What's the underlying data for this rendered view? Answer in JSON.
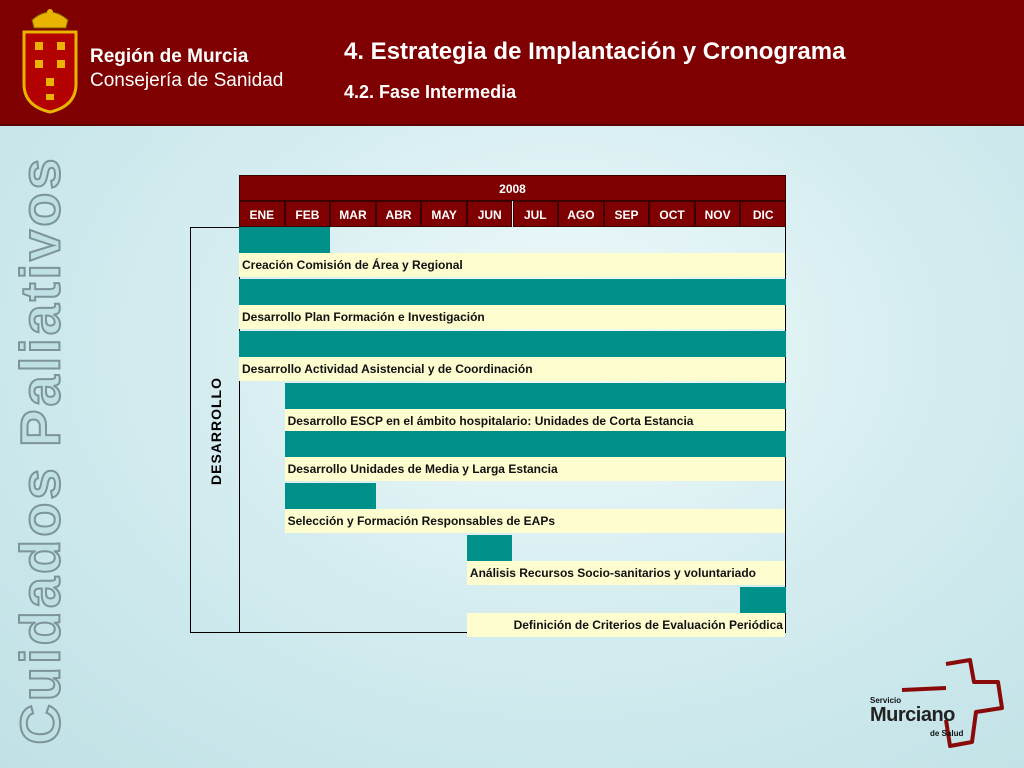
{
  "header": {
    "org_line1": "Región de Murcia",
    "org_line2": "Consejería de Sanidad",
    "title": "4. Estrategia de Implantación y Cronograma",
    "subtitle": "4.2. Fase Intermedia"
  },
  "side_title": "Cuidados Paliativos",
  "colors": {
    "header": "#7f0000",
    "bar": "#00908a",
    "label_bg": "#fdfdd0"
  },
  "gantt": {
    "year": "2008",
    "months": [
      "ENE",
      "FEB",
      "MAR",
      "ABR",
      "MAY",
      "JUN",
      "JUL",
      "AGO",
      "SEP",
      "OCT",
      "NOV",
      "DIC"
    ],
    "group_label": "DESARROLLO",
    "tasks": [
      {
        "label": "Creación Comisión de Área y Regional",
        "start_month": 1,
        "end_month": 2,
        "label_start_month": 1
      },
      {
        "label": "Desarrollo Plan Formación e Investigación",
        "start_month": 1,
        "end_month": 12,
        "label_start_month": 1
      },
      {
        "label": "Desarrollo Actividad Asistencial y de Coordinación",
        "start_month": 1,
        "end_month": 12,
        "label_start_month": 1
      },
      {
        "label": "Desarrollo ESCP en el ámbito hospitalario: Unidades de Corta Estancia",
        "start_month": 2,
        "end_month": 12,
        "label_start_month": 2
      },
      {
        "label": "Desarrollo Unidades de Media y Larga Estancia",
        "start_month": 2,
        "end_month": 12,
        "label_start_month": 2
      },
      {
        "label": "Selección y Formación Responsables de EAPs",
        "start_month": 2,
        "end_month": 3,
        "label_start_month": 2
      },
      {
        "label": "Análisis Recursos Socio-sanitarios y voluntariado",
        "start_month": 6,
        "end_month": 6,
        "label_start_month": 6
      },
      {
        "label": "Definición de Criterios de Evaluación Periódica",
        "start_month": 12,
        "end_month": 12,
        "label_start_month": 6
      }
    ]
  },
  "footer_logo": {
    "line1": "Servicio",
    "line2": "Murciano",
    "line3": "de Salud",
    "icon": "cross-outline-icon"
  }
}
